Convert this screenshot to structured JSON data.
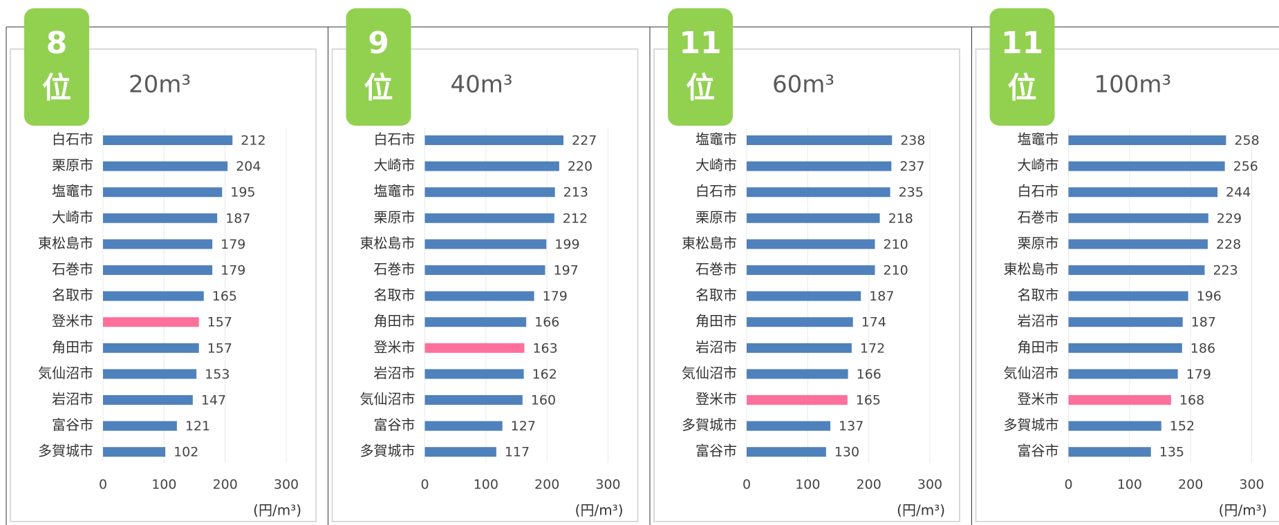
{
  "chart_data": [
    {
      "type": "bar",
      "rank": "8",
      "rank_suffix": "位",
      "title": "20m³",
      "unit": "(円/m³)",
      "categories": [
        "白石市",
        "栗原市",
        "塩竈市",
        "大崎市",
        "東松島市",
        "石巻市",
        "名取市",
        "登米市",
        "角田市",
        "気仙沼市",
        "岩沼市",
        "富谷市",
        "多賀城市"
      ],
      "values": [
        212,
        204,
        195,
        187,
        179,
        179,
        165,
        157,
        157,
        153,
        147,
        121,
        102
      ],
      "colors": [
        "#4f81bd",
        "#4f81bd",
        "#4f81bd",
        "#4f81bd",
        "#4f81bd",
        "#4f81bd",
        "#4f81bd",
        "#ff6f9c",
        "#4f81bd",
        "#4f81bd",
        "#4f81bd",
        "#4f81bd",
        "#4f81bd"
      ],
      "xlim": [
        0,
        300
      ],
      "xticks": [
        0,
        100,
        200,
        300
      ],
      "grid": true
    },
    {
      "type": "bar",
      "rank": "9",
      "rank_suffix": "位",
      "title": "40m³",
      "unit": "(円/m³)",
      "categories": [
        "白石市",
        "大崎市",
        "塩竈市",
        "栗原市",
        "東松島市",
        "石巻市",
        "名取市",
        "角田市",
        "登米市",
        "岩沼市",
        "気仙沼市",
        "富谷市",
        "多賀城市"
      ],
      "values": [
        227,
        220,
        213,
        212,
        199,
        197,
        179,
        166,
        163,
        162,
        160,
        127,
        117
      ],
      "colors": [
        "#4f81bd",
        "#4f81bd",
        "#4f81bd",
        "#4f81bd",
        "#4f81bd",
        "#4f81bd",
        "#4f81bd",
        "#4f81bd",
        "#ff6f9c",
        "#4f81bd",
        "#4f81bd",
        "#4f81bd",
        "#4f81bd"
      ],
      "xlim": [
        0,
        300
      ],
      "xticks": [
        0,
        100,
        200,
        300
      ],
      "grid": true
    },
    {
      "type": "bar",
      "rank": "11",
      "rank_suffix": "位",
      "title": "60m³",
      "unit": "(円/m³)",
      "categories": [
        "塩竈市",
        "大崎市",
        "白石市",
        "栗原市",
        "東松島市",
        "石巻市",
        "名取市",
        "角田市",
        "岩沼市",
        "気仙沼市",
        "登米市",
        "多賀城市",
        "富谷市"
      ],
      "values": [
        238,
        237,
        235,
        218,
        210,
        210,
        187,
        174,
        172,
        166,
        165,
        137,
        130
      ],
      "colors": [
        "#4f81bd",
        "#4f81bd",
        "#4f81bd",
        "#4f81bd",
        "#4f81bd",
        "#4f81bd",
        "#4f81bd",
        "#4f81bd",
        "#4f81bd",
        "#4f81bd",
        "#ff6f9c",
        "#4f81bd",
        "#4f81bd"
      ],
      "xlim": [
        0,
        300
      ],
      "xticks": [
        0,
        100,
        200,
        300
      ],
      "grid": true
    },
    {
      "type": "bar",
      "rank": "11",
      "rank_suffix": "位",
      "title": "100m³",
      "unit": "(円/m³)",
      "categories": [
        "塩竈市",
        "大崎市",
        "白石市",
        "石巻市",
        "栗原市",
        "東松島市",
        "名取市",
        "岩沼市",
        "角田市",
        "気仙沼市",
        "登米市",
        "多賀城市",
        "富谷市"
      ],
      "values": [
        258,
        256,
        244,
        229,
        228,
        223,
        196,
        187,
        186,
        179,
        168,
        152,
        135
      ],
      "colors": [
        "#4f81bd",
        "#4f81bd",
        "#4f81bd",
        "#4f81bd",
        "#4f81bd",
        "#4f81bd",
        "#4f81bd",
        "#4f81bd",
        "#4f81bd",
        "#4f81bd",
        "#ff6f9c",
        "#4f81bd",
        "#4f81bd"
      ],
      "xlim": [
        0,
        300
      ],
      "xticks": [
        0,
        100,
        200,
        300
      ],
      "grid": true
    }
  ]
}
